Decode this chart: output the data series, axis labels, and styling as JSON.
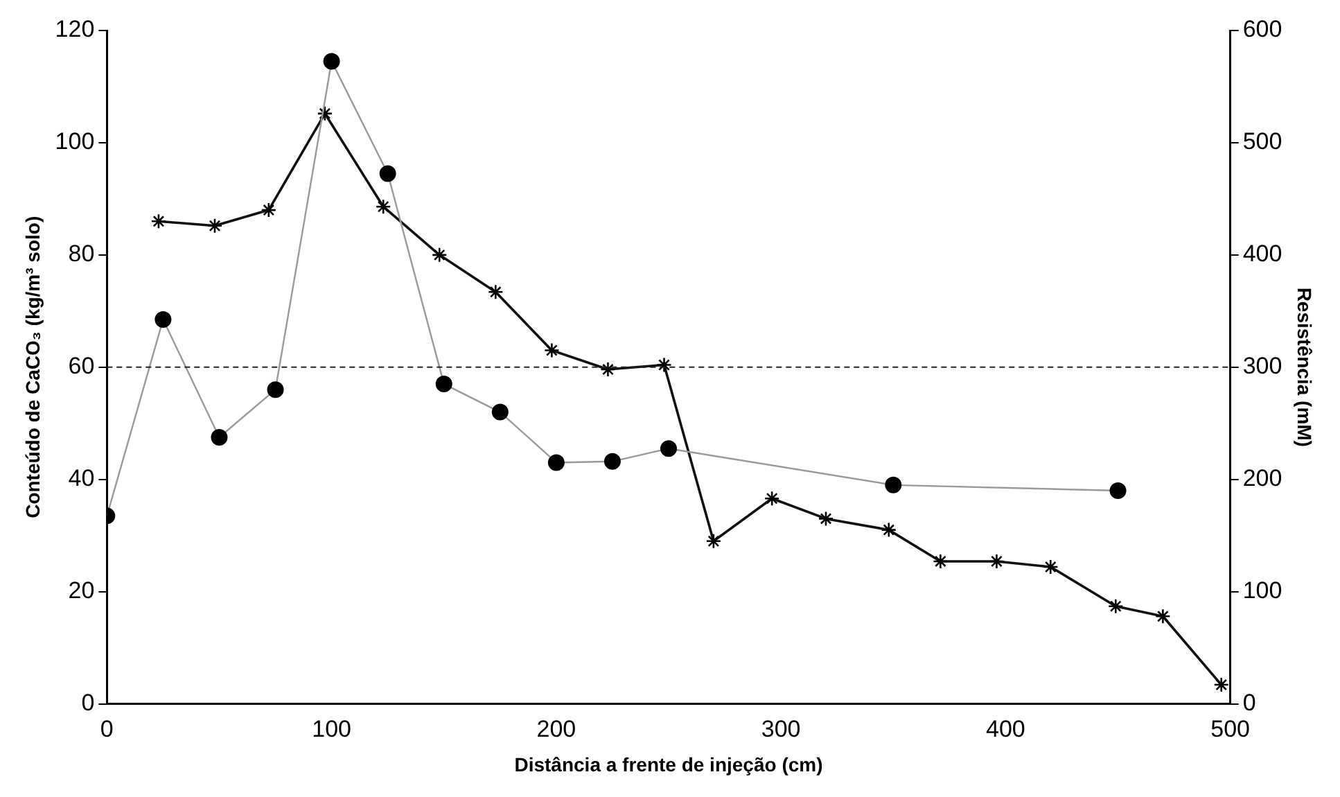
{
  "chart_data": {
    "type": "line",
    "xlabel": "Distância a frente de injeção (cm)",
    "ylabel": "Conteúdo de CaCO₃ (kg/m³ solo)",
    "y2label": "Resistência (mM)",
    "xlim": [
      0,
      500
    ],
    "xticks": [
      0,
      100,
      200,
      300,
      400,
      500
    ],
    "ylim": [
      0,
      120
    ],
    "yticks": [
      0,
      20,
      40,
      60,
      80,
      100,
      120
    ],
    "y2lim": [
      0,
      600
    ],
    "y2ticks": [
      0,
      100,
      200,
      300,
      400,
      500,
      600
    ],
    "grid": false,
    "legend": false,
    "series": [
      {
        "color": "#999999",
        "marker": "circle",
        "x": [
          0,
          25,
          50,
          75,
          100,
          125,
          150,
          175,
          200,
          225,
          250,
          350,
          450
        ],
        "values": [
          33.5,
          68.5,
          47.5,
          56,
          114.5,
          94.5,
          57,
          52,
          43,
          43.2,
          45.5,
          39,
          38
        ]
      },
      {
        "color": "#111111",
        "marker": "cross",
        "axis": "y2",
        "x": [
          23,
          48,
          72,
          97,
          123,
          148,
          173,
          198,
          223,
          248,
          270,
          296,
          320,
          348,
          371,
          396,
          420,
          449,
          470,
          496
        ],
        "values": [
          430,
          426,
          440,
          526,
          443,
          400,
          367,
          315,
          298,
          302,
          145,
          183,
          165,
          155,
          127,
          127,
          122,
          87,
          78,
          17
        ]
      }
    ],
    "ref_lines": [
      {
        "axis": "y",
        "value": 60,
        "color": "#222222",
        "line_style": "dashed"
      }
    ]
  }
}
